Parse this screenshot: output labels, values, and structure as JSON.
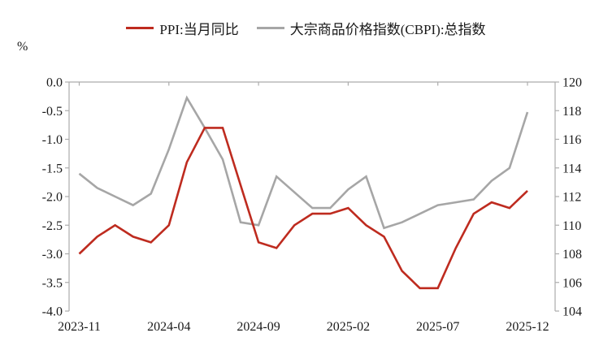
{
  "legend": {
    "items": [
      {
        "label": "PPI:当月同比",
        "color": "#BE2B1F"
      },
      {
        "label": "大宗商品价格指数(CBPI):总指数",
        "color": "#A6A6A6"
      }
    ]
  },
  "chart_data": {
    "type": "line",
    "x": [
      "2023-11",
      "2023-12",
      "2024-01",
      "2024-02",
      "2024-03",
      "2024-04",
      "2024-05",
      "2024-06",
      "2024-07",
      "2024-08",
      "2024-09",
      "2024-10",
      "2024-11",
      "2024-12",
      "2025-01",
      "2025-02",
      "2025-03",
      "2025-04",
      "2025-05",
      "2025-06",
      "2025-07",
      "2025-08",
      "2025-09",
      "2025-10",
      "2025-11",
      "2025-12"
    ],
    "x_tick_labels": [
      "2023-11",
      "2024-04",
      "2024-09",
      "2025-02",
      "2025-07",
      "2025-12"
    ],
    "series": [
      {
        "name": "PPI:当月同比",
        "axis": "left",
        "color": "#BE2B1F",
        "values": [
          -3.0,
          -2.7,
          -2.5,
          -2.7,
          -2.8,
          -2.5,
          -1.4,
          -0.8,
          -0.8,
          -1.8,
          -2.8,
          -2.9,
          -2.5,
          -2.3,
          -2.3,
          -2.2,
          -2.5,
          -2.7,
          -3.3,
          -3.6,
          -3.6,
          -2.9,
          -2.3,
          -2.1,
          -2.2,
          -1.9
        ]
      },
      {
        "name": "大宗商品价格指数(CBPI):总指数",
        "axis": "right",
        "color": "#A6A6A6",
        "values": [
          113.6,
          112.6,
          112.0,
          111.4,
          112.2,
          115.3,
          118.9,
          116.8,
          114.6,
          110.2,
          110.0,
          113.4,
          112.3,
          111.2,
          111.2,
          112.5,
          113.4,
          109.8,
          110.2,
          110.8,
          111.4,
          111.6,
          111.8,
          113.1,
          114.0,
          117.9
        ]
      }
    ],
    "left_axis": {
      "label": "%",
      "min": -4.0,
      "max": 0.0,
      "step": 0.5,
      "tick_labels": [
        "0.0",
        "-0.5",
        "-1.0",
        "-1.5",
        "-2.0",
        "-2.5",
        "-3.0",
        "-3.5",
        "-4.0"
      ]
    },
    "right_axis": {
      "min": 104,
      "max": 120,
      "step": 2,
      "tick_labels": [
        "120",
        "118",
        "116",
        "114",
        "112",
        "110",
        "108",
        "106",
        "104"
      ]
    },
    "grid": false,
    "legend_position": "top",
    "axis_line_color": "#ACACAC",
    "tick_text_color": "#1a1a1a"
  }
}
